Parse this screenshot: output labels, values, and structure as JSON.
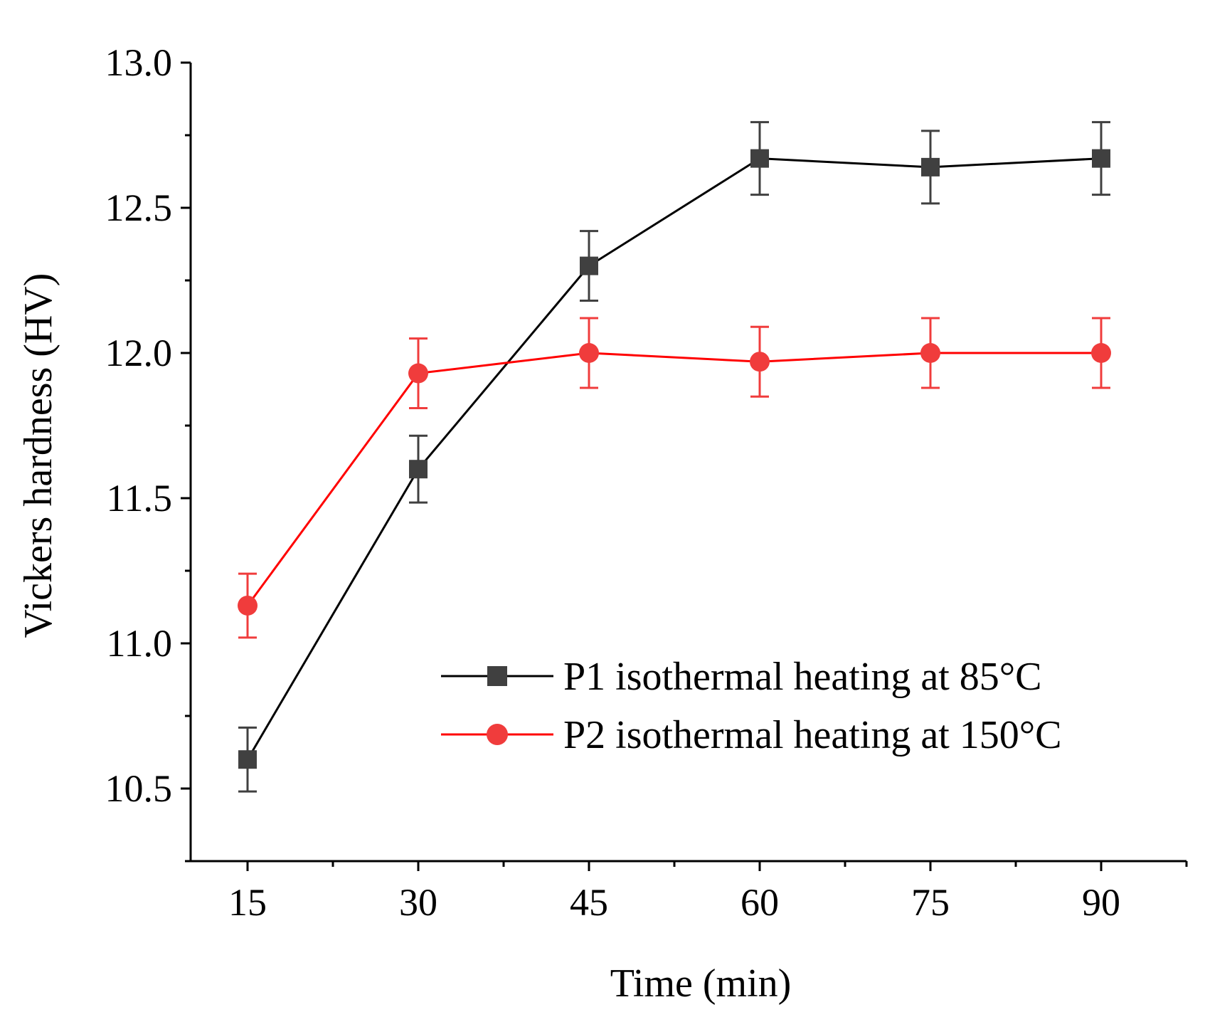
{
  "chart_data": {
    "type": "line",
    "title": "",
    "xlabel": "Time (min)",
    "ylabel": "Vickers hardness (HV)",
    "xlim": [
      10,
      97.5
    ],
    "ylim": [
      10.25,
      13.0
    ],
    "x": [
      15,
      30,
      45,
      60,
      75,
      90
    ],
    "x_ticks": [
      "15",
      "30",
      "45",
      "60",
      "75",
      "90"
    ],
    "y_ticks": [
      "10.5",
      "11.0",
      "11.5",
      "12.0",
      "12.5",
      "13.0"
    ],
    "grid": false,
    "legend_position": "lower-right",
    "series": [
      {
        "name": "P1 isothermal heating at 85°C",
        "color": "#000000",
        "marker_color": "#404040",
        "marker": "square",
        "values": [
          10.6,
          11.6,
          12.3,
          12.67,
          12.64,
          12.67
        ],
        "errors": [
          0.11,
          0.115,
          0.12,
          0.125,
          0.125,
          0.125
        ]
      },
      {
        "name": "P2 isothermal heating at 150°C",
        "color": "#ff0000",
        "marker_color": "#f03c3c",
        "marker": "circle",
        "values": [
          11.13,
          11.93,
          12.0,
          11.97,
          12.0,
          12.0
        ],
        "errors": [
          0.11,
          0.12,
          0.12,
          0.12,
          0.12,
          0.12
        ]
      }
    ]
  }
}
